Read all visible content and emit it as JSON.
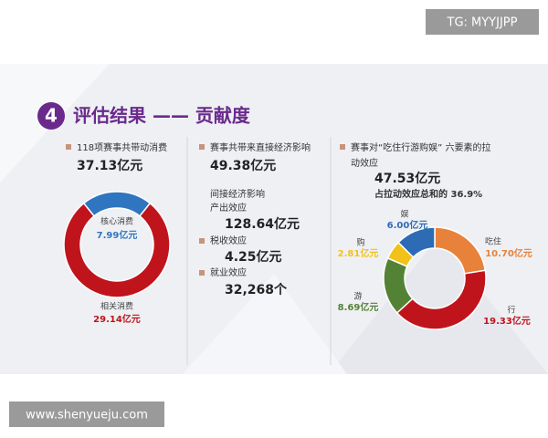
{
  "watermark": "TG: MYYJJPP",
  "footer_url": "www.shenyueju.com",
  "badge": "4",
  "heading": "评估结果 —— 贡献度",
  "col1": {
    "caption": "118项赛事共带动消费",
    "total": "37.13亿元"
  },
  "col2": {
    "caption": "赛事共带来直接经济影响",
    "total": "49.38亿元",
    "indirect": "间接经济影响",
    "output_label": "产出效应",
    "output_value": "128.64亿元",
    "tax_label": "税收效应",
    "tax_value": "4.25亿元",
    "jobs_label": "就业效应",
    "jobs_value": "32,268个"
  },
  "col3": {
    "caption_1": "赛事对“吃住行游购娱” 六要素的拉",
    "caption_2": "动效应",
    "total": "47.53亿元",
    "share": "占拉动效应总和的 36.9%"
  },
  "chart_data": [
    {
      "type": "pie",
      "categories": [
        "核心消费",
        "相关消费"
      ],
      "values": [
        7.99,
        29.14
      ],
      "value_labels": [
        "7.99亿元",
        "29.14亿元"
      ],
      "colors": [
        "#2f75c0",
        "#c0141c"
      ]
    },
    {
      "type": "pie",
      "categories": [
        "吃住",
        "行",
        "游",
        "购",
        "娱"
      ],
      "values": [
        10.7,
        19.33,
        8.69,
        2.81,
        6.0
      ],
      "value_labels": [
        "10.70亿元",
        "19.33亿元",
        "8.69亿元",
        "2.81亿元",
        "6.00亿元"
      ],
      "colors": [
        "#e8823a",
        "#c0141c",
        "#548235",
        "#f2c21b",
        "#2e6bb5"
      ]
    }
  ]
}
